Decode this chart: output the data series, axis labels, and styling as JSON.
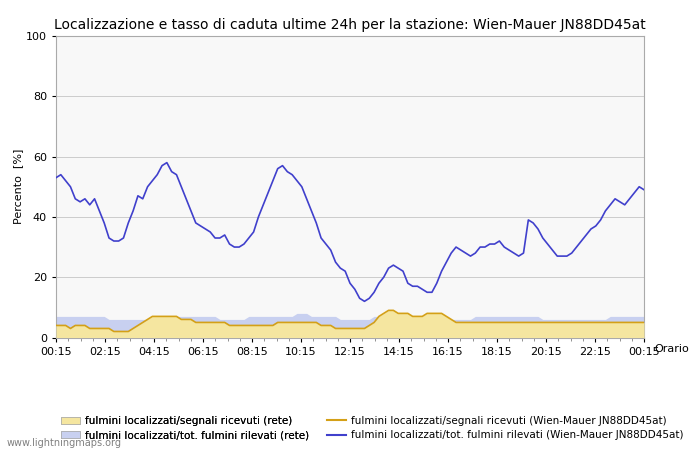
{
  "title": "Localizzazione e tasso di caduta ultime 24h per la stazione: Wien-Mauer JN88DD45at",
  "ylabel": "Percento  [%]",
  "xlabel_right": "Orario",
  "watermark": "www.lightningmaps.org",
  "x_ticks": [
    "00:15",
    "02:15",
    "04:15",
    "06:15",
    "08:15",
    "10:15",
    "12:15",
    "14:15",
    "16:15",
    "18:15",
    "20:15",
    "22:15",
    "00:15"
  ],
  "ylim": [
    0,
    100
  ],
  "yticks": [
    0,
    20,
    40,
    60,
    80,
    100
  ],
  "legend": [
    {
      "label": "fulmini localizzati/segnali ricevuti (rete)",
      "color": "#f5e6a0",
      "type": "fill"
    },
    {
      "label": "fulmini localizzati/segnali ricevuti (Wien-Mauer JN88DD45at)",
      "color": "#d4a017",
      "type": "line"
    },
    {
      "label": "fulmini localizzati/tot. fulmini rilevati (rete)",
      "color": "#c8d0f0",
      "type": "fill"
    },
    {
      "label": "fulmini localizzati/tot. fulmini rilevati (Wien-Mauer JN88DD45at)",
      "color": "#4040cc",
      "type": "line"
    }
  ],
  "blue_line": [
    53,
    54,
    52,
    50,
    46,
    45,
    46,
    44,
    46,
    42,
    38,
    33,
    32,
    32,
    33,
    38,
    42,
    47,
    46,
    50,
    52,
    54,
    57,
    58,
    55,
    54,
    50,
    46,
    42,
    38,
    37,
    36,
    35,
    33,
    33,
    34,
    31,
    30,
    30,
    31,
    33,
    35,
    40,
    44,
    48,
    52,
    56,
    57,
    55,
    54,
    52,
    50,
    46,
    42,
    38,
    33,
    31,
    29,
    25,
    23,
    22,
    18,
    16,
    13,
    12,
    13,
    15,
    18,
    20,
    23,
    24,
    23,
    22,
    18,
    17,
    17,
    16,
    15,
    15,
    18,
    22,
    25,
    28,
    30,
    29,
    28,
    27,
    28,
    30,
    30,
    31,
    31,
    32,
    30,
    29,
    28,
    27,
    28,
    39,
    38,
    36,
    33,
    31,
    29,
    27,
    27,
    27,
    28,
    30,
    32,
    34,
    36,
    37,
    39,
    42,
    44,
    46,
    45,
    44,
    46,
    48,
    50,
    49
  ],
  "orange_line": [
    4,
    4,
    4,
    3,
    4,
    4,
    4,
    3,
    3,
    3,
    3,
    3,
    2,
    2,
    2,
    2,
    3,
    4,
    5,
    6,
    7,
    7,
    7,
    7,
    7,
    7,
    6,
    6,
    6,
    5,
    5,
    5,
    5,
    5,
    5,
    5,
    4,
    4,
    4,
    4,
    4,
    4,
    4,
    4,
    4,
    4,
    5,
    5,
    5,
    5,
    5,
    5,
    5,
    5,
    5,
    4,
    4,
    4,
    3,
    3,
    3,
    3,
    3,
    3,
    3,
    4,
    5,
    7,
    8,
    9,
    9,
    8,
    8,
    8,
    7,
    7,
    7,
    8,
    8,
    8,
    8,
    7,
    6,
    5,
    5,
    5,
    5,
    5,
    5,
    5,
    5,
    5,
    5,
    5,
    5,
    5,
    5,
    5,
    5,
    5,
    5,
    5,
    5,
    5,
    5,
    5,
    5,
    5,
    5,
    5,
    5,
    5,
    5,
    5,
    5,
    5,
    5,
    5,
    5,
    5,
    5,
    5,
    5
  ],
  "blue_fill": [
    7,
    7,
    7,
    7,
    7,
    7,
    7,
    7,
    7,
    7,
    7,
    6,
    6,
    6,
    6,
    6,
    6,
    6,
    6,
    6,
    6,
    6,
    6,
    6,
    7,
    7,
    7,
    7,
    7,
    7,
    7,
    7,
    7,
    7,
    6,
    6,
    6,
    6,
    6,
    6,
    7,
    7,
    7,
    7,
    7,
    7,
    7,
    7,
    7,
    7,
    8,
    8,
    8,
    7,
    7,
    7,
    7,
    7,
    7,
    6,
    6,
    6,
    6,
    6,
    6,
    6,
    7,
    7,
    7,
    8,
    8,
    8,
    7,
    7,
    7,
    7,
    7,
    7,
    6,
    6,
    6,
    6,
    6,
    6,
    6,
    6,
    6,
    7,
    7,
    7,
    7,
    7,
    7,
    7,
    7,
    7,
    7,
    7,
    7,
    7,
    7,
    6,
    6,
    6,
    6,
    6,
    6,
    6,
    6,
    6,
    6,
    6,
    6,
    6,
    6,
    7,
    7,
    7,
    7,
    7,
    7,
    7,
    7
  ],
  "yellow_fill": [
    4,
    4,
    4,
    3,
    4,
    4,
    4,
    3,
    3,
    3,
    3,
    3,
    2,
    2,
    2,
    2,
    3,
    4,
    5,
    6,
    7,
    7,
    7,
    7,
    7,
    7,
    6,
    6,
    6,
    5,
    5,
    5,
    5,
    5,
    5,
    5,
    4,
    4,
    4,
    4,
    4,
    4,
    4,
    4,
    4,
    4,
    5,
    5,
    5,
    5,
    5,
    5,
    5,
    5,
    5,
    4,
    4,
    4,
    3,
    3,
    3,
    3,
    3,
    3,
    3,
    4,
    5,
    7,
    8,
    9,
    9,
    8,
    8,
    8,
    7,
    7,
    7,
    8,
    8,
    8,
    8,
    7,
    6,
    5,
    5,
    5,
    5,
    5,
    5,
    5,
    5,
    5,
    5,
    5,
    5,
    5,
    5,
    5,
    5,
    5,
    5,
    5,
    5,
    5,
    5,
    5,
    5,
    5,
    5,
    5,
    5,
    5,
    5,
    5,
    5,
    5,
    5,
    5,
    5,
    5,
    5,
    5,
    5
  ],
  "bg_color": "#ffffff",
  "plot_bg_color": "#f8f8f8",
  "grid_color": "#cccccc",
  "title_fontsize": 10,
  "axis_fontsize": 8,
  "tick_fontsize": 8,
  "legend_fontsize": 7.5
}
